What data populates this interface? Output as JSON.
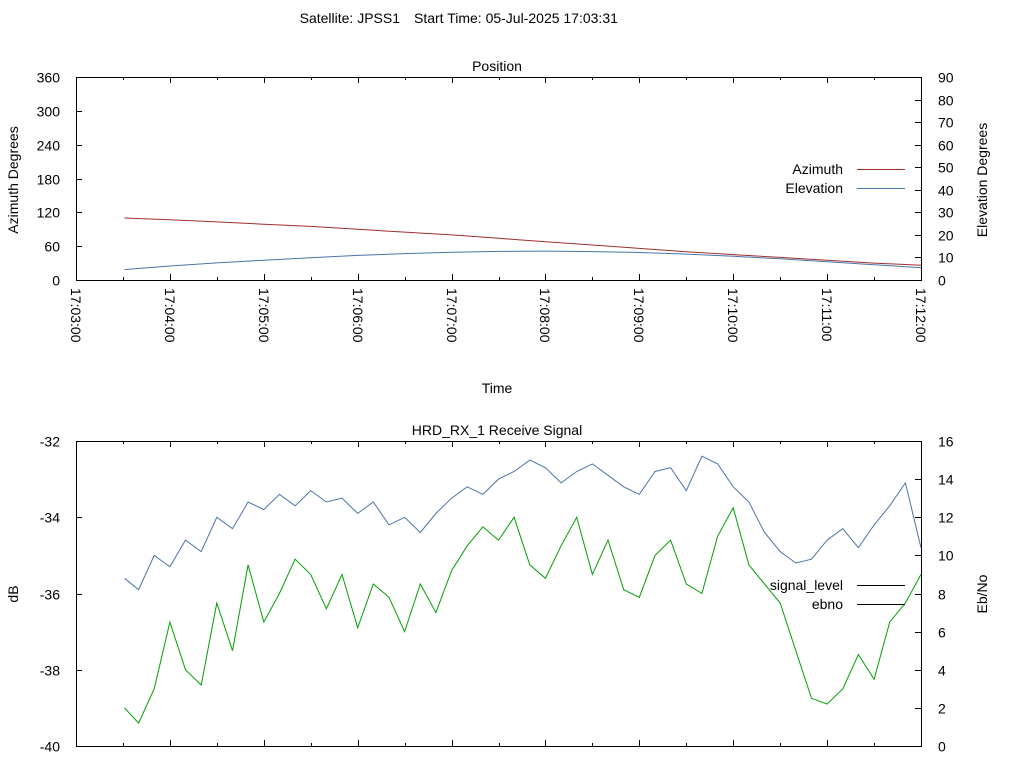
{
  "header": {
    "satellite": "Satellite: JPSS1",
    "start_time": "Start Time: 05-Jul-2025 17:03:31"
  },
  "chart_data": [
    {
      "type": "line",
      "title": "Position",
      "xlabel": "Time",
      "ylabel": "Azimuth Degrees",
      "y2label": "Elevation Degrees",
      "x_ticks": [
        "17:03:00",
        "17:04:00",
        "17:05:00",
        "17:06:00",
        "17:07:00",
        "17:08:00",
        "17:09:00",
        "17:10:00",
        "17:11:00",
        "17:12:00"
      ],
      "xlim": [
        "17:03:00",
        "17:12:00"
      ],
      "ylim": [
        0,
        360
      ],
      "y_ticks": [
        "0",
        "60",
        "120",
        "180",
        "240",
        "300",
        "360"
      ],
      "y2lim": [
        0,
        90
      ],
      "y2_ticks": [
        "0",
        "10",
        "20",
        "30",
        "40",
        "50",
        "60",
        "70",
        "80",
        "90"
      ],
      "legend_position": "right",
      "grid": false,
      "series": [
        {
          "name": "Azimuth",
          "axis": "y",
          "color": "#a0302c",
          "x": [
            "17:03:31",
            "17:04:00",
            "17:04:30",
            "17:05:00",
            "17:05:30",
            "17:06:00",
            "17:06:30",
            "17:07:00",
            "17:07:30",
            "17:08:00",
            "17:08:30",
            "17:09:00",
            "17:09:30",
            "17:10:00",
            "17:10:30",
            "17:11:00",
            "17:11:30",
            "17:12:00"
          ],
          "values": [
            110,
            107,
            103,
            99,
            95,
            90,
            85,
            80,
            74,
            68,
            62,
            56,
            50,
            45,
            40,
            35,
            30,
            26
          ]
        },
        {
          "name": "Elevation",
          "axis": "y2",
          "color": "#4a74aa",
          "x": [
            "17:03:31",
            "17:04:00",
            "17:04:30",
            "17:05:00",
            "17:05:30",
            "17:06:00",
            "17:06:30",
            "17:07:00",
            "17:07:30",
            "17:08:00",
            "17:08:30",
            "17:09:00",
            "17:09:30",
            "17:10:00",
            "17:10:30",
            "17:11:00",
            "17:11:30",
            "17:12:00"
          ],
          "values": [
            4.6,
            6.2,
            7.6,
            8.8,
            9.9,
            10.9,
            11.7,
            12.3,
            12.7,
            12.8,
            12.6,
            12.2,
            11.5,
            10.5,
            9.4,
            8.1,
            6.8,
            5.4
          ]
        }
      ]
    },
    {
      "type": "line",
      "title": "HRD_RX_1 Receive Signal",
      "ylabel": "dB",
      "y2label": "Eb/No",
      "xlim": [
        "17:03:00",
        "17:12:00"
      ],
      "ylim": [
        -40,
        -32
      ],
      "y_ticks": [
        "-40",
        "-38",
        "-36",
        "-34",
        "-32"
      ],
      "y2lim": [
        0,
        16
      ],
      "y2_ticks": [
        "0",
        "2",
        "4",
        "6",
        "8",
        "10",
        "12",
        "14",
        "16"
      ],
      "legend_position": "right",
      "grid": false,
      "series": [
        {
          "name": "signal_level",
          "axis": "y",
          "color": "#4a74aa",
          "x": [
            "17:03:31",
            "17:03:40",
            "17:03:50",
            "17:04:00",
            "17:04:10",
            "17:04:20",
            "17:04:30",
            "17:04:40",
            "17:04:50",
            "17:05:00",
            "17:05:10",
            "17:05:20",
            "17:05:30",
            "17:05:40",
            "17:05:50",
            "17:06:00",
            "17:06:10",
            "17:06:20",
            "17:06:30",
            "17:06:40",
            "17:06:50",
            "17:07:00",
            "17:07:10",
            "17:07:20",
            "17:07:30",
            "17:07:40",
            "17:07:50",
            "17:08:00",
            "17:08:10",
            "17:08:20",
            "17:08:30",
            "17:08:40",
            "17:08:50",
            "17:09:00",
            "17:09:10",
            "17:09:20",
            "17:09:30",
            "17:09:40",
            "17:09:50",
            "17:10:00",
            "17:10:10",
            "17:10:20",
            "17:10:30",
            "17:10:40",
            "17:10:50",
            "17:11:00",
            "17:11:10",
            "17:11:20",
            "17:11:30",
            "17:11:40",
            "17:11:50",
            "17:12:00"
          ],
          "values": [
            -35.6,
            -35.9,
            -35.0,
            -35.3,
            -34.6,
            -34.9,
            -34.0,
            -34.3,
            -33.6,
            -33.8,
            -33.4,
            -33.7,
            -33.3,
            -33.6,
            -33.5,
            -33.9,
            -33.6,
            -34.2,
            -34.0,
            -34.4,
            -33.9,
            -33.5,
            -33.2,
            -33.4,
            -33.0,
            -32.8,
            -32.5,
            -32.7,
            -33.1,
            -32.8,
            -32.6,
            -32.9,
            -33.2,
            -33.4,
            -32.8,
            -32.7,
            -33.3,
            -32.4,
            -32.6,
            -33.2,
            -33.6,
            -34.4,
            -34.9,
            -35.2,
            -35.1,
            -34.6,
            -34.3,
            -34.8,
            -34.2,
            -33.7,
            -33.1,
            -34.8
          ]
        },
        {
          "name": "ebno",
          "axis": "y2",
          "color": "#00a000",
          "x": [
            "17:03:31",
            "17:03:40",
            "17:03:50",
            "17:04:00",
            "17:04:10",
            "17:04:20",
            "17:04:30",
            "17:04:40",
            "17:04:50",
            "17:05:00",
            "17:05:10",
            "17:05:20",
            "17:05:30",
            "17:05:40",
            "17:05:50",
            "17:06:00",
            "17:06:10",
            "17:06:20",
            "17:06:30",
            "17:06:40",
            "17:06:50",
            "17:07:00",
            "17:07:10",
            "17:07:20",
            "17:07:30",
            "17:07:40",
            "17:07:50",
            "17:08:00",
            "17:08:10",
            "17:08:20",
            "17:08:30",
            "17:08:40",
            "17:08:50",
            "17:09:00",
            "17:09:10",
            "17:09:20",
            "17:09:30",
            "17:09:40",
            "17:09:50",
            "17:10:00",
            "17:10:10",
            "17:10:20",
            "17:10:30",
            "17:10:40",
            "17:10:50",
            "17:11:00",
            "17:11:10",
            "17:11:20",
            "17:11:30",
            "17:11:40",
            "17:11:50",
            "17:12:00"
          ],
          "values": [
            2.0,
            1.2,
            3.0,
            6.5,
            4.0,
            3.2,
            7.5,
            5.0,
            9.5,
            6.5,
            8.0,
            9.8,
            9.0,
            7.2,
            9.0,
            6.2,
            8.5,
            7.8,
            6.0,
            8.5,
            7.0,
            9.2,
            10.5,
            11.5,
            10.8,
            12.0,
            9.5,
            8.8,
            10.5,
            12.0,
            9.0,
            10.8,
            8.2,
            7.8,
            10.0,
            10.8,
            8.5,
            8.0,
            11.0,
            12.5,
            9.5,
            8.5,
            7.5,
            5.0,
            2.5,
            2.2,
            3.0,
            4.8,
            3.5,
            6.5,
            7.5,
            9.0
          ]
        }
      ]
    }
  ]
}
